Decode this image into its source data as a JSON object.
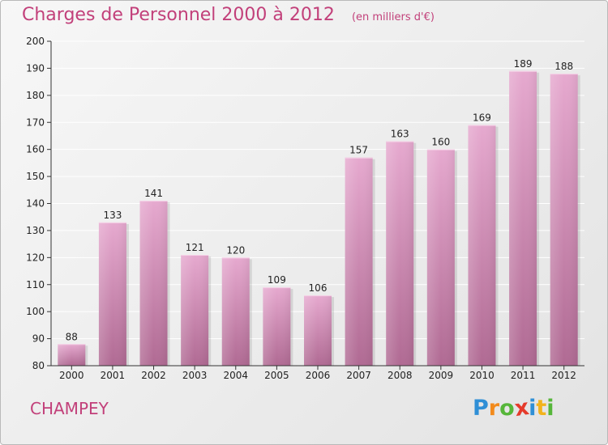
{
  "header": {
    "title": "Charges de Personnel 2000 à 2012",
    "subtitle": "(en milliers d'€)"
  },
  "footer": {
    "commune": "CHAMPEY",
    "logo_letters": [
      "P",
      "r",
      "o",
      "x",
      "i",
      "t",
      "i"
    ],
    "logo_colors": [
      "#2f8fd6",
      "#f28a1c",
      "#56b63a",
      "#e53a2b",
      "#2f8fd6",
      "#f2b31c",
      "#56b63a"
    ]
  },
  "colors": {
    "bar_top": "#e6a9cf",
    "bar_bottom": "#b06a93",
    "title": "#c2407a",
    "axis": "#333333",
    "grid": "#ffffff"
  },
  "chart_data": {
    "type": "bar",
    "title": "Charges de Personnel 2000 à 2012",
    "subtitle": "(en milliers d'€)",
    "xlabel": "",
    "ylabel": "",
    "categories": [
      "2000",
      "2001",
      "2002",
      "2003",
      "2004",
      "2005",
      "2006",
      "2007",
      "2008",
      "2009",
      "2010",
      "2011",
      "2012"
    ],
    "values": [
      88,
      133,
      141,
      121,
      120,
      109,
      106,
      157,
      163,
      160,
      169,
      189,
      188
    ],
    "ylim": [
      80,
      200
    ],
    "yticks": [
      80,
      90,
      100,
      110,
      120,
      130,
      140,
      150,
      160,
      170,
      180,
      190,
      200
    ],
    "grid": true,
    "data_labels": true
  }
}
